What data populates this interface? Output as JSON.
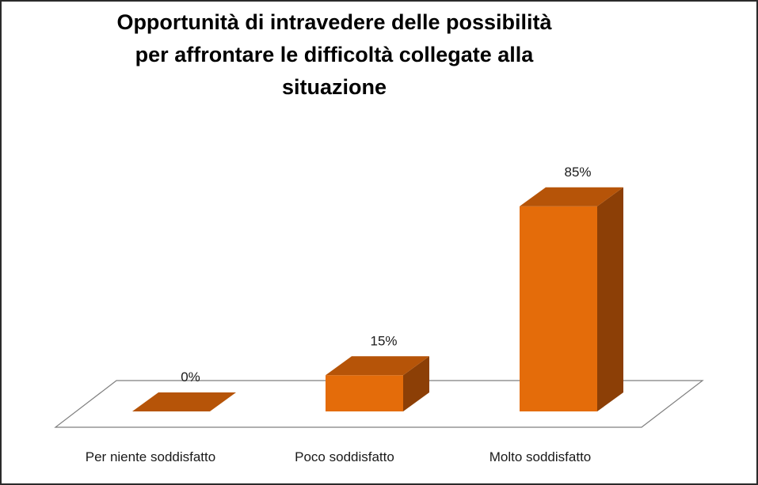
{
  "chart_data": {
    "type": "bar",
    "title_lines": [
      "Opportunità di intravedere delle possibilità",
      "per affrontare le difficoltà collegate alla",
      "situazione"
    ],
    "categories": [
      "Per niente soddisfatto",
      "Poco soddisfatto",
      "Molto soddisfatto"
    ],
    "values": [
      0,
      15,
      85
    ],
    "data_labels": [
      "0%",
      "15%",
      "85%"
    ],
    "ylim": [
      0,
      100
    ],
    "grid": false,
    "legend": "none",
    "colors": {
      "front": "#E46C0A",
      "top": "#B65408",
      "side": "#8C3F06",
      "floor_stroke": "#7f7f7f"
    }
  }
}
